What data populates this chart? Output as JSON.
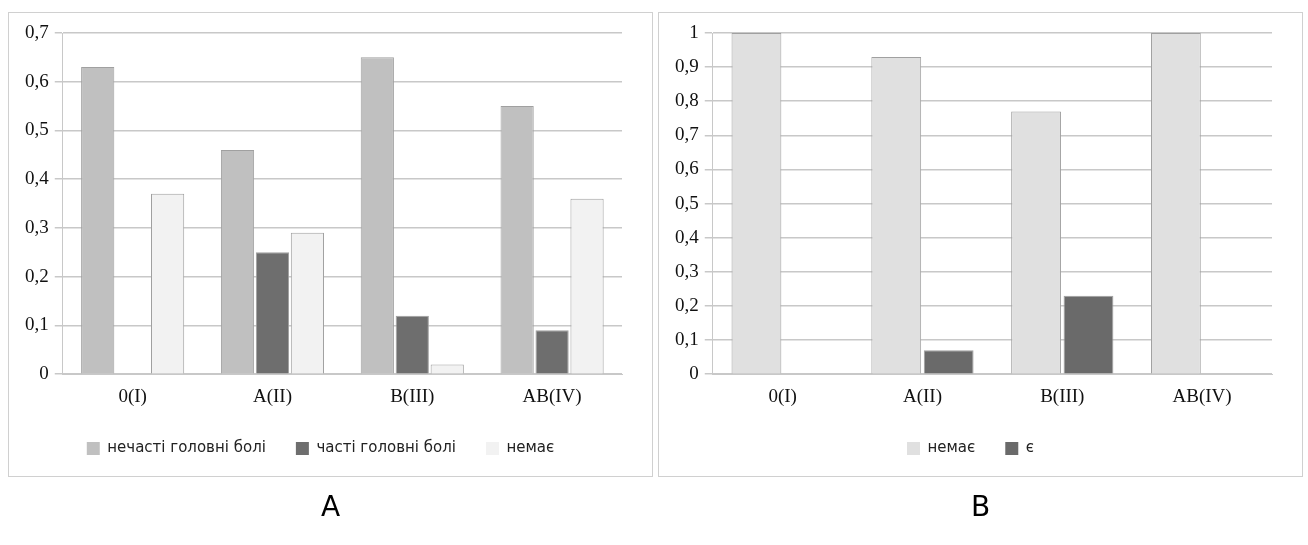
{
  "chart_data": [
    {
      "type": "bar",
      "categories": [
        "0(I)",
        "A(II)",
        "B(III)",
        "AB(IV)"
      ],
      "series": [
        {
          "name": "нечасті головні болі",
          "color": "#c0c0c0",
          "values": [
            0.63,
            0.46,
            0.65,
            0.55
          ]
        },
        {
          "name": "часті головні болі",
          "color": "#6e6e6e",
          "values": [
            0,
            0.25,
            0.12,
            0.09
          ]
        },
        {
          "name": "немає",
          "color": "#f2f2f2",
          "values": [
            0.37,
            0.29,
            0.02,
            0.36
          ]
        }
      ],
      "ylim": [
        0,
        0.7
      ],
      "yticks": [
        {
          "value": 0,
          "label": "0"
        },
        {
          "value": 0.1,
          "label": "0,1"
        },
        {
          "value": 0.2,
          "label": "0,2"
        },
        {
          "value": 0.3,
          "label": "0,3"
        },
        {
          "value": 0.4,
          "label": "0,4"
        },
        {
          "value": 0.5,
          "label": "0,5"
        },
        {
          "value": 0.6,
          "label": "0,6"
        },
        {
          "value": 0.7,
          "label": "0,7"
        }
      ],
      "grid": "y",
      "legend": "bottom",
      "annotations": [
        "A"
      ]
    },
    {
      "type": "bar",
      "categories": [
        "0(I)",
        "A(II)",
        "B(III)",
        "AB(IV)"
      ],
      "series": [
        {
          "name": "немає",
          "color": "#e0e0e0",
          "values": [
            1,
            0.93,
            0.77,
            1
          ]
        },
        {
          "name": "є",
          "color": "#6a6a6a",
          "values": [
            0,
            0.07,
            0.23,
            0
          ]
        }
      ],
      "ylim": [
        0,
        1
      ],
      "yticks": [
        {
          "value": 0,
          "label": "0"
        },
        {
          "value": 0.1,
          "label": "0,1"
        },
        {
          "value": 0.2,
          "label": "0,2"
        },
        {
          "value": 0.3,
          "label": "0,3"
        },
        {
          "value": 0.4,
          "label": "0,4"
        },
        {
          "value": 0.5,
          "label": "0,5"
        },
        {
          "value": 0.6,
          "label": "0,6"
        },
        {
          "value": 0.7,
          "label": "0,7"
        },
        {
          "value": 0.8,
          "label": "0,8"
        },
        {
          "value": 0.9,
          "label": "0,9"
        },
        {
          "value": 1,
          "label": "1"
        }
      ],
      "grid": "y",
      "legend": "bottom",
      "annotations": [
        "B"
      ]
    }
  ]
}
